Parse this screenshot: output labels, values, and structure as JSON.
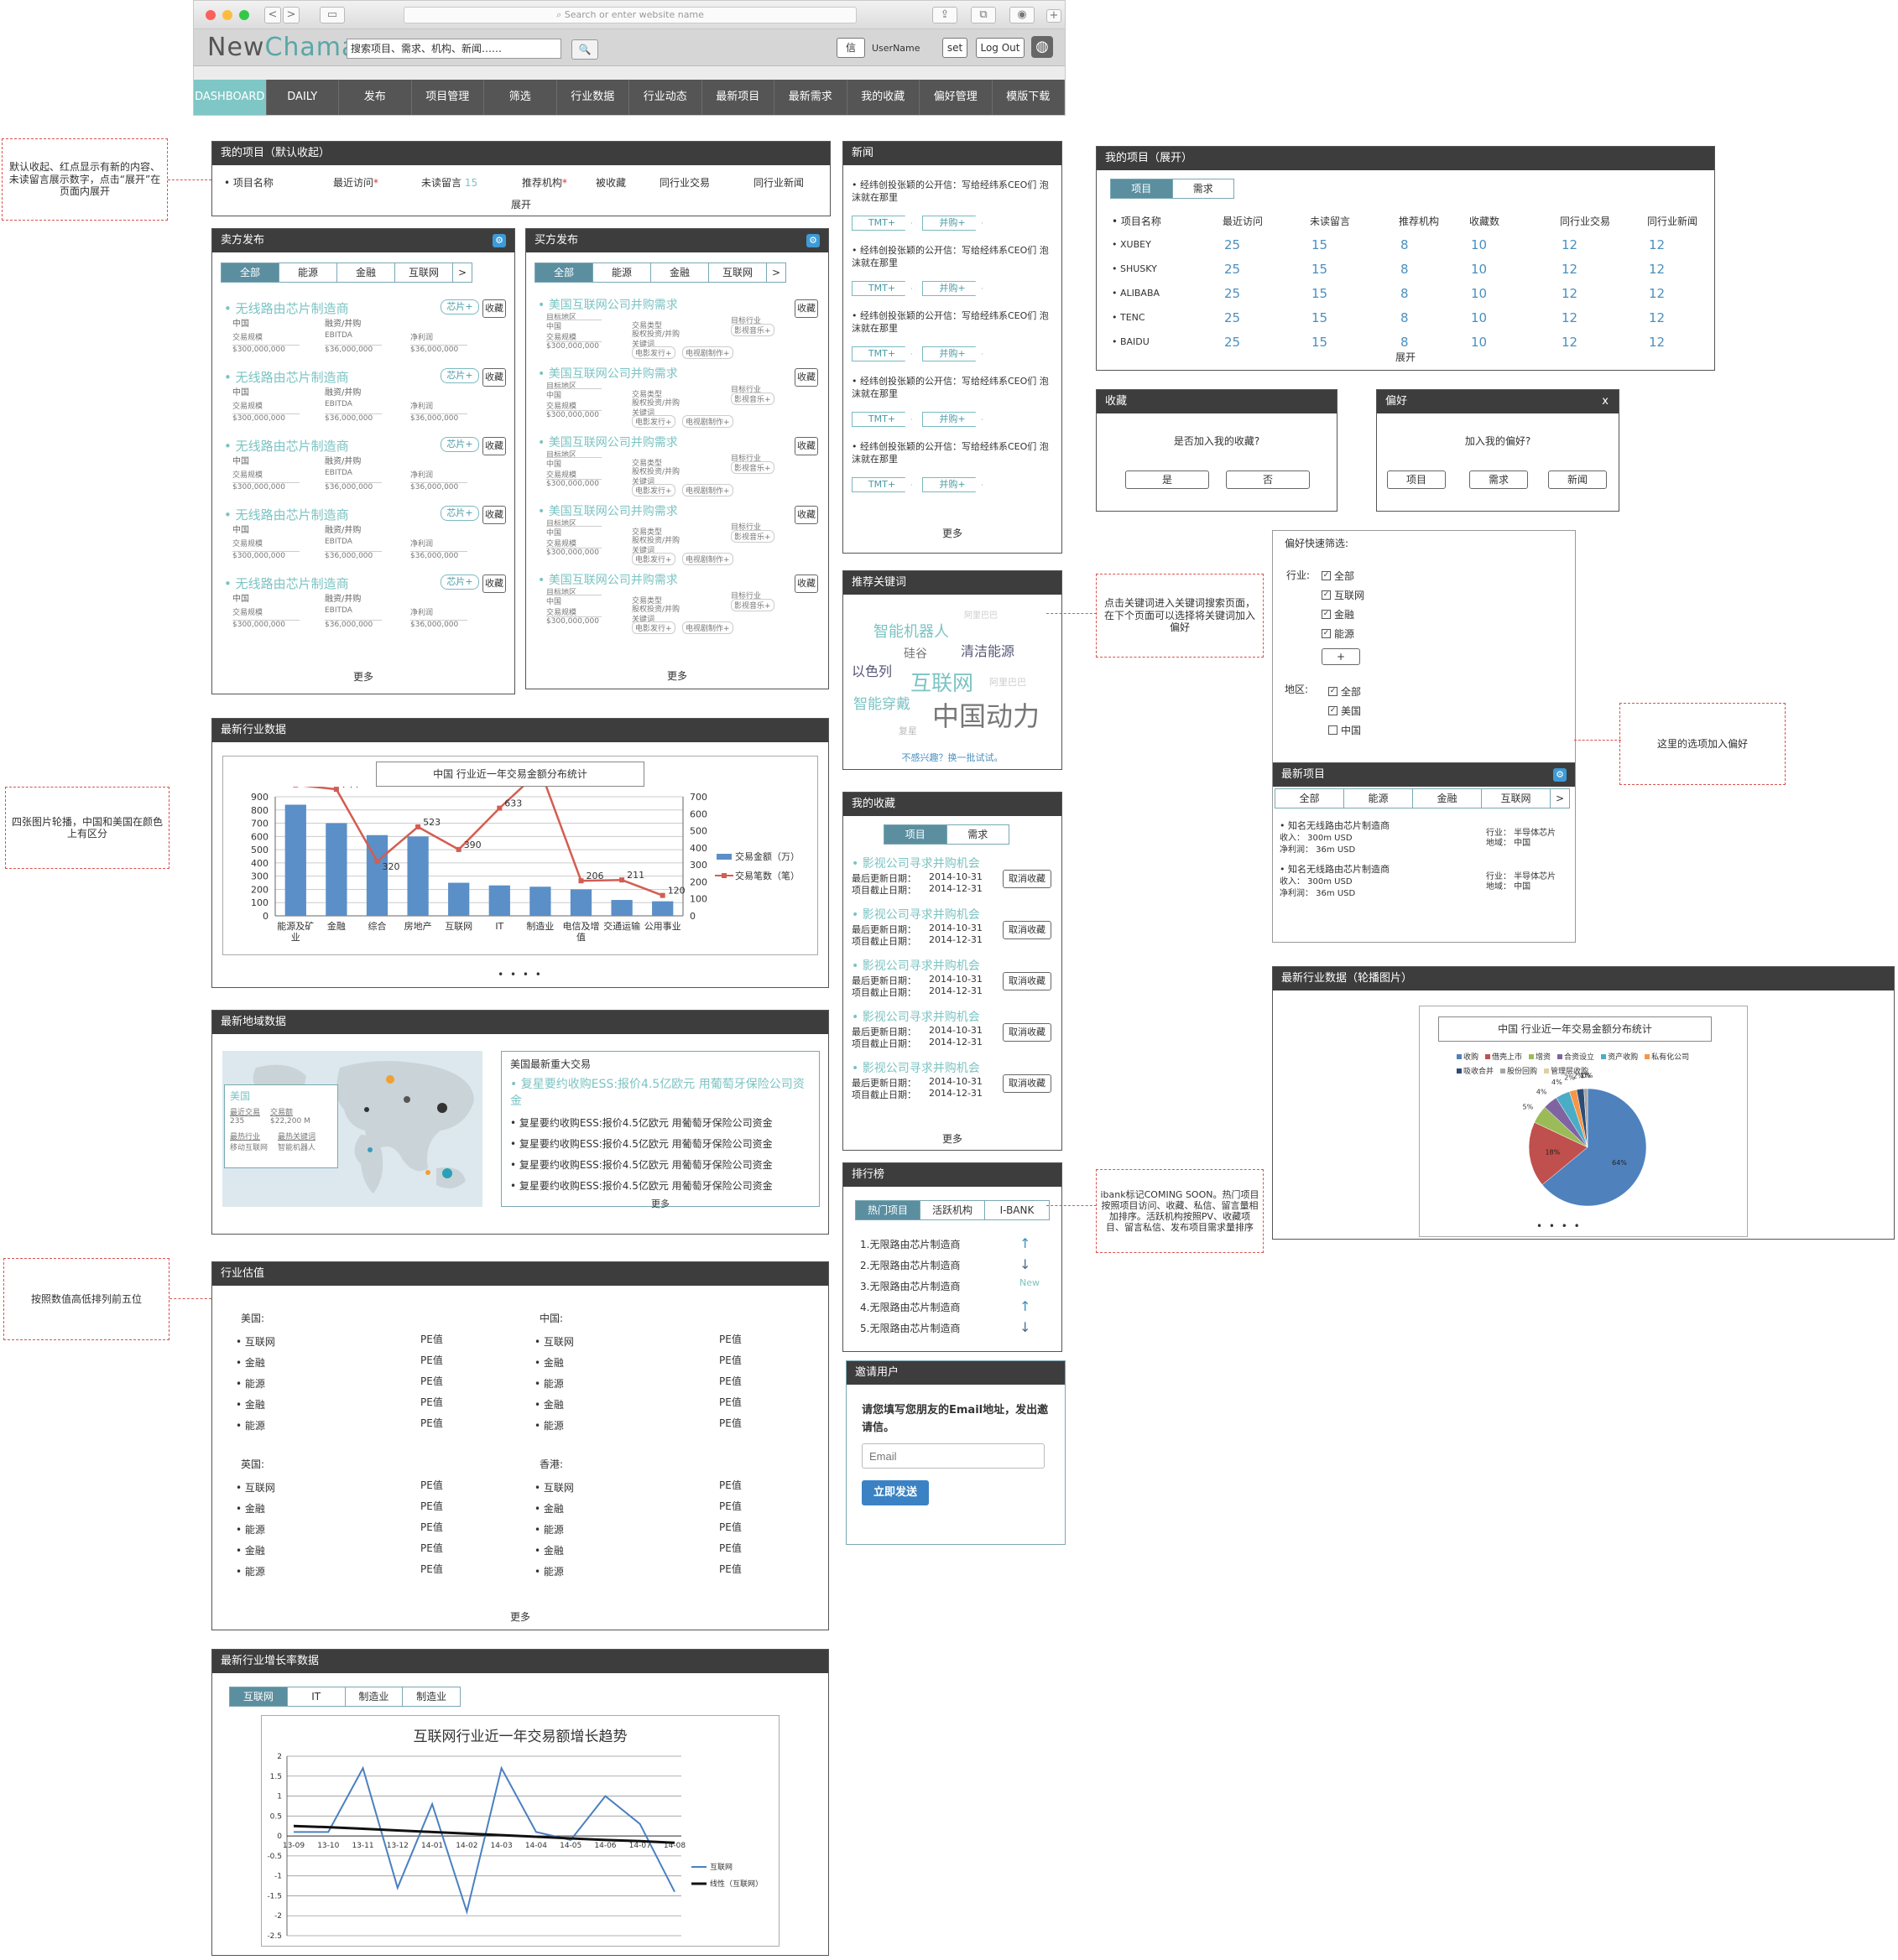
{
  "browser": {
    "url_placeholder": "Search or enter website name",
    "nav_back": "<",
    "nav_fwd": ">",
    "sidebar": "▭",
    "share": "⇪",
    "tabs": "⧉",
    "eye": "◉",
    "plus": "+"
  },
  "header": {
    "logo_a": "New",
    "logo_b": "Chama",
    "search_value": "搜索项目、需求、机构、新闻……",
    "search_btn": "🔍",
    "msg_btn": "信",
    "username": "UserName",
    "set_btn": "set",
    "logout_btn": "Log Out",
    "globe": "◍"
  },
  "nav": [
    "DASHBOARD",
    "DAILY",
    "发布",
    "项目管理",
    "筛选",
    "行业数据",
    "行业动态",
    "最新项目",
    "最新需求",
    "我的收藏",
    "偏好管理",
    "模版下载"
  ],
  "my_projects": {
    "title": "我的项目（默认收起）",
    "cols": [
      "• 项目名称",
      "最近访问",
      "未读留言",
      "推荐机构",
      "被收藏",
      "同行业交易",
      "同行业新闻"
    ],
    "unread_count": "15",
    "red_dot": "*",
    "expand": "展开"
  },
  "seller": {
    "title": "卖方发布",
    "tabs": [
      "全部",
      "能源",
      "金融",
      "互联网",
      ">"
    ],
    "items": [
      {
        "title": "• 无线路由芯片制造商",
        "tag": "芯片+",
        "btn": "收藏",
        "region": "中国",
        "type": "融资/并购",
        "l1": "交易规模",
        "l2": "EBITDA",
        "l3": "净利润",
        "v1": "$300,000,000",
        "v2": "$36,000,000",
        "v3": "$36,000,000"
      },
      {
        "title": "• 无线路由芯片制造商",
        "tag": "芯片+",
        "btn": "收藏",
        "region": "中国",
        "type": "融资/并购",
        "l1": "交易规模",
        "l2": "EBITDA",
        "l3": "净利润",
        "v1": "$300,000,000",
        "v2": "$36,000,000",
        "v3": "$36,000,000"
      },
      {
        "title": "• 无线路由芯片制造商",
        "tag": "芯片+",
        "btn": "收藏",
        "region": "中国",
        "type": "融资/并购",
        "l1": "交易规模",
        "l2": "EBITDA",
        "l3": "净利润",
        "v1": "$300,000,000",
        "v2": "$36,000,000",
        "v3": "$36,000,000"
      },
      {
        "title": "• 无线路由芯片制造商",
        "tag": "芯片+",
        "btn": "收藏",
        "region": "中国",
        "type": "融资/并购",
        "l1": "交易规模",
        "l2": "EBITDA",
        "l3": "净利润",
        "v1": "$300,000,000",
        "v2": "$36,000,000",
        "v3": "$36,000,000"
      },
      {
        "title": "• 无线路由芯片制造商",
        "tag": "芯片+",
        "btn": "收藏",
        "region": "中国",
        "type": "融资/并购",
        "l1": "交易规模",
        "l2": "EBITDA",
        "l3": "净利润",
        "v1": "$300,000,000",
        "v2": "$36,000,000",
        "v3": "$36,000,000"
      }
    ],
    "more": "更多"
  },
  "buyer": {
    "title": "买方发布",
    "tabs": [
      "全部",
      "能源",
      "金融",
      "互联网",
      ">"
    ],
    "items": [
      {
        "title": "• 美国互联网公司并购需求",
        "btn": "收藏",
        "a1": "目标地区",
        "a2": "中国",
        "b1": "交易类型",
        "b2": "股权投资/并购",
        "c1": "目标行业",
        "c2": "影视音乐+",
        "d1": "交易规模",
        "d2": "$300,000,000",
        "e1": "关键词",
        "e2": "电影发行+",
        "e3": "电视剧制作+"
      },
      {
        "title": "• 美国互联网公司并购需求",
        "btn": "收藏",
        "a1": "目标地区",
        "a2": "中国",
        "b1": "交易类型",
        "b2": "股权投资/并购",
        "c1": "目标行业",
        "c2": "影视音乐+",
        "d1": "交易规模",
        "d2": "$300,000,000",
        "e1": "关键词",
        "e2": "电影发行+",
        "e3": "电视剧制作+"
      },
      {
        "title": "• 美国互联网公司并购需求",
        "btn": "收藏",
        "a1": "目标地区",
        "a2": "中国",
        "b1": "交易类型",
        "b2": "股权投资/并购",
        "c1": "目标行业",
        "c2": "影视音乐+",
        "d1": "交易规模",
        "d2": "$300,000,000",
        "e1": "关键词",
        "e2": "电影发行+",
        "e3": "电视剧制作+"
      },
      {
        "title": "• 美国互联网公司并购需求",
        "btn": "收藏",
        "a1": "目标地区",
        "a2": "中国",
        "b1": "交易类型",
        "b2": "股权投资/并购",
        "c1": "目标行业",
        "c2": "影视音乐+",
        "d1": "交易规模",
        "d2": "$300,000,000",
        "e1": "关键词",
        "e2": "电影发行+",
        "e3": "电视剧制作+"
      },
      {
        "title": "• 美国互联网公司并购需求",
        "btn": "收藏",
        "a1": "目标地区",
        "a2": "中国",
        "b1": "交易类型",
        "b2": "股权投资/并购",
        "c1": "目标行业",
        "c2": "影视音乐+",
        "d1": "交易规模",
        "d2": "$300,000,000",
        "e1": "关键词",
        "e2": "电影发行+",
        "e3": "电视剧制作+"
      }
    ],
    "more": "更多"
  },
  "news": {
    "title": "新闻",
    "items": [
      {
        "text": "• 经纬创投张颖的公开信：写给经纬系CEO们 泡沫就在那里",
        "t1": "TMT+",
        "t2": "并购+"
      },
      {
        "text": "• 经纬创投张颖的公开信：写给经纬系CEO们 泡沫就在那里",
        "t1": "TMT+",
        "t2": "并购+"
      },
      {
        "text": "• 经纬创投张颖的公开信：写给经纬系CEO们 泡沫就在那里",
        "t1": "TMT+",
        "t2": "并购+"
      },
      {
        "text": "• 经纬创投张颖的公开信：写给经纬系CEO们 泡沫就在那里",
        "t1": "TMT+",
        "t2": "并购+"
      },
      {
        "text": "• 经纬创投张颖的公开信：写给经纬系CEO们 泡沫就在那里",
        "t1": "TMT+",
        "t2": "并购+"
      }
    ],
    "more": "更多"
  },
  "keywords": {
    "title": "推荐关键词",
    "words": [
      "智能机器人",
      "阿里巴巴",
      "硅谷",
      "清洁能源",
      "以色列",
      "互联网",
      "阿里巴巴",
      "智能穿戴",
      "中国动力",
      "复星"
    ],
    "refresh": "不感兴趣？换一批试试。"
  },
  "favorites": {
    "title": "我的收藏",
    "tabs": [
      "项目",
      "需求"
    ],
    "items": [
      {
        "title": "• 影视公司寻求并购机会",
        "l1": "最后更新日期：",
        "d1": "2014-10-31",
        "l2": "项目截止日期：",
        "d2": "2014-12-31",
        "btn": "取消收藏"
      },
      {
        "title": "• 影视公司寻求并购机会",
        "l1": "最后更新日期：",
        "d1": "2014-10-31",
        "l2": "项目截止日期：",
        "d2": "2014-12-31",
        "btn": "取消收藏"
      },
      {
        "title": "• 影视公司寻求并购机会",
        "l1": "最后更新日期：",
        "d1": "2014-10-31",
        "l2": "项目截止日期：",
        "d2": "2014-12-31",
        "btn": "取消收藏"
      },
      {
        "title": "• 影视公司寻求并购机会",
        "l1": "最后更新日期：",
        "d1": "2014-10-31",
        "l2": "项目截止日期：",
        "d2": "2014-12-31",
        "btn": "取消收藏"
      },
      {
        "title": "• 影视公司寻求并购机会",
        "l1": "最后更新日期：",
        "d1": "2014-10-31",
        "l2": "项目截止日期：",
        "d2": "2014-12-31",
        "btn": "取消收藏"
      }
    ],
    "more": "更多"
  },
  "ranking": {
    "title": "排行榜",
    "tabs": [
      "热门项目",
      "活跃机构",
      "I-BANK"
    ],
    "items": [
      {
        "text": "1.无限路由芯片制造商",
        "trend": "↑"
      },
      {
        "text": "2.无限路由芯片制造商",
        "trend": "↓"
      },
      {
        "text": "3.无限路由芯片制造商",
        "trend": "New"
      },
      {
        "text": "4.无限路由芯片制造商",
        "trend": "↑"
      },
      {
        "text": "5.无限路由芯片制造商",
        "trend": "↓"
      }
    ]
  },
  "invite": {
    "title": "邀请用户",
    "text": "请您填写您朋友的Email地址，发出邀请信。",
    "placeholder": "Email",
    "btn": "立即发送"
  },
  "my_projects_open": {
    "title": "我的项目（展开）",
    "tabs": [
      "项目",
      "需求"
    ],
    "cols": [
      "• 项目名称",
      "最近访问",
      "未读留言",
      "推荐机构",
      "收藏数",
      "同行业交易",
      "同行业新闻"
    ],
    "rows": [
      {
        "name": "• XUBEY",
        "v": [
          "25",
          "15",
          "8",
          "10",
          "12",
          "12"
        ]
      },
      {
        "name": "• SHUSKY",
        "v": [
          "25",
          "15",
          "8",
          "10",
          "12",
          "12"
        ]
      },
      {
        "name": "• ALIBABA",
        "v": [
          "25",
          "15",
          "8",
          "10",
          "12",
          "12"
        ]
      },
      {
        "name": "• TENC",
        "v": [
          "25",
          "15",
          "8",
          "10",
          "12",
          "12"
        ]
      },
      {
        "name": "• BAIDU",
        "v": [
          "25",
          "15",
          "8",
          "10",
          "12",
          "12"
        ]
      }
    ],
    "expand": "展开"
  },
  "fav_dialog": {
    "title": "收藏",
    "question": "是否加入我的收藏?",
    "yes": "是",
    "no": "否"
  },
  "pref_dialog": {
    "title": "偏好",
    "close": "x",
    "question": "加入我的偏好?",
    "b1": "项目",
    "b2": "需求",
    "b3": "新闻"
  },
  "pref_filter": {
    "title": "偏好快速筛选:",
    "industry_label": "行业:",
    "industries": [
      "全部",
      "互联网",
      "金融",
      "能源"
    ],
    "add": "+",
    "region_label": "地区:",
    "regions": [
      "全部",
      "美国",
      "中国"
    ]
  },
  "latest_projects": {
    "title": "最新项目",
    "tabs": [
      "全部",
      "能源",
      "金融",
      "互联网",
      ">"
    ],
    "items": [
      {
        "name": "• 知名无线路由芯片制造商",
        "rev": "收入：  300m USD",
        "profit": "净利润：  36m USD",
        "ind": "行业：  半导体芯片",
        "reg": "地域：  中国"
      },
      {
        "name": "• 知名无线路由芯片制造商",
        "rev": "收入：  300m USD",
        "profit": "净利润：  36m USD",
        "ind": "行业：  半导体芯片",
        "reg": "地域：  中国"
      }
    ]
  },
  "industry_data": {
    "title": "最新行业数据",
    "chart_title": "中国 行业近一年交易金额分布统计",
    "legend_bar": "交易金额（万）",
    "legend_line": "交易笔数（笔）",
    "dots": "•   •   •   •"
  },
  "region_data": {
    "title": "最新地域数据",
    "country": "美国",
    "l1": "最近交易",
    "v1": "235",
    "l2": "交易额",
    "v2": "$22,200 M",
    "l3": "最热行业",
    "v3": "移动互联网",
    "l4": "最热关键词",
    "v4": "智能机器人",
    "deals_title": "美国最新重大交易",
    "main_deal": "• 复星要约收购ESS:报价4.5亿欧元 用葡萄牙保险公司资金",
    "deals": [
      "• 复星要约收购ESS:报价4.5亿欧元 用葡萄牙保险公司资金",
      "• 复星要约收购ESS:报价4.5亿欧元 用葡萄牙保险公司资金",
      "• 复星要约收购ESS:报价4.5亿欧元 用葡萄牙保险公司资金",
      "• 复星要约收购ESS:报价4.5亿欧元 用葡萄牙保险公司资金"
    ],
    "more": "更多"
  },
  "valuation": {
    "title": "行业估值",
    "groups": [
      {
        "name": "美国:",
        "items": [
          "• 互联网",
          "• 金融",
          "• 能源",
          "• 金融",
          "• 能源"
        ]
      },
      {
        "name": "中国:",
        "items": [
          "• 互联网",
          "• 金融",
          "• 能源",
          "• 金融",
          "• 能源"
        ]
      },
      {
        "name": "英国:",
        "items": [
          "• 互联网",
          "• 金融",
          "• 能源",
          "• 金融",
          "• 能源"
        ]
      },
      {
        "name": "香港:",
        "items": [
          "• 互联网",
          "• 金融",
          "• 能源",
          "• 金融",
          "• 能源"
        ]
      }
    ],
    "pe": "PE值",
    "more": "更多"
  },
  "growth": {
    "title": "最新行业增长率数据",
    "tabs": [
      "互联网",
      "IT",
      "制造业",
      "制造业"
    ],
    "chart_title": "互联网行业近一年交易额增长趋势",
    "legend1": "互联网",
    "legend2": "线性（互联网）"
  },
  "carousel": {
    "title": "最新行业数据（轮播图片）",
    "chart_title": "中国 行业近一年交易金额分布统计",
    "dots": "•   •   •   •"
  },
  "notes": {
    "n1": "默认收起、红点显示有新的内容、未读留言展示数字，点击“展开”在页面内展开",
    "n2": "四张图片轮播，中国和美国在颜色上有区分",
    "n3": "按照数值高低排列前五位",
    "n4": "点击关键词进入关键词搜索页面，在下个页面可以选择将关键词加入偏好",
    "n5": "这里的选项加入偏好",
    "n6": "ibank标记COMING SOON。热门项目按照项目访问、收藏、私信、留言量相加排序。活跃机构按照PV、收藏项目、留言私信、发布项目需求量排序"
  },
  "colors": {
    "teal": "#7cc3c3",
    "nav_active": "#7fc7c6",
    "panel_header": "#3d3d3d",
    "bar": "#5b8fc7",
    "line": "#d35d52",
    "button_blue": "#3b82c4"
  },
  "chart_data": [
    {
      "type": "bar",
      "title": "中国 行业近一年交易金额分布统计",
      "categories": [
        "能源及矿业",
        "金融",
        "综合",
        "房地产",
        "互联网",
        "IT",
        "制造业",
        "电信及增值",
        "交通运输",
        "公用事业"
      ],
      "series": [
        {
          "name": "交易金额（万）",
          "type": "bar",
          "values": [
            840,
            700,
            610,
            600,
            250,
            230,
            220,
            200,
            120,
            110
          ]
        },
        {
          "name": "交易笔数（笔）",
          "type": "line",
          "values": [
            770,
            744,
            320,
            523,
            390,
            633,
            855,
            206,
            211,
            120
          ]
        }
      ],
      "ylim": [
        0,
        900
      ],
      "y2lim": [
        0,
        700
      ],
      "yticks": [
        0,
        100,
        200,
        300,
        400,
        500,
        600,
        700,
        800,
        900
      ],
      "y2ticks": [
        0,
        100,
        200,
        300,
        400,
        500,
        600,
        700
      ],
      "legend": "right",
      "grid": true
    },
    {
      "type": "line",
      "title": "互联网行业近一年交易额增长趋势",
      "categories": [
        "13-09",
        "13-10",
        "13-11",
        "13-12",
        "14-01",
        "14-02",
        "14-03",
        "14-04",
        "14-05",
        "14-06",
        "14-07",
        "14-08"
      ],
      "series": [
        {
          "name": "互联网",
          "values": [
            0.1,
            0.1,
            1.7,
            -1.3,
            0.8,
            -1.9,
            1.7,
            0.1,
            -0.1,
            1.0,
            0.3,
            -1.4
          ]
        },
        {
          "name": "线性（互联网）",
          "values": [
            0.25,
            0.22,
            0.18,
            0.14,
            0.1,
            0.06,
            0.02,
            -0.02,
            -0.06,
            -0.1,
            -0.13,
            -0.17
          ]
        }
      ],
      "ylim": [
        -2.5,
        2
      ],
      "yticks": [
        -2.5,
        -2,
        -1.5,
        -1,
        -0.5,
        0,
        0.5,
        1,
        1.5,
        2
      ],
      "legend": "right",
      "grid": true
    },
    {
      "type": "pie",
      "title": "中国 行业近一年交易金额分布统计",
      "legend": [
        "收购",
        "借壳上市",
        "增资",
        "合资设立",
        "资产收购",
        "私有化公司",
        "吸收合并",
        "股份回购",
        "管理层收购"
      ],
      "values": [
        64,
        18,
        5,
        4,
        4,
        2,
        2,
        1,
        0
      ],
      "labels": [
        "64%",
        "18%",
        "5%",
        "4%",
        "4%",
        "2%",
        "2%",
        "1%",
        "0%"
      ],
      "colors": [
        "#4f81bd",
        "#c0504d",
        "#9bbb59",
        "#8064a2",
        "#4bacc6",
        "#f79646",
        "#2c4d75",
        "#a5a5a5",
        "#e0d0a0"
      ]
    }
  ]
}
